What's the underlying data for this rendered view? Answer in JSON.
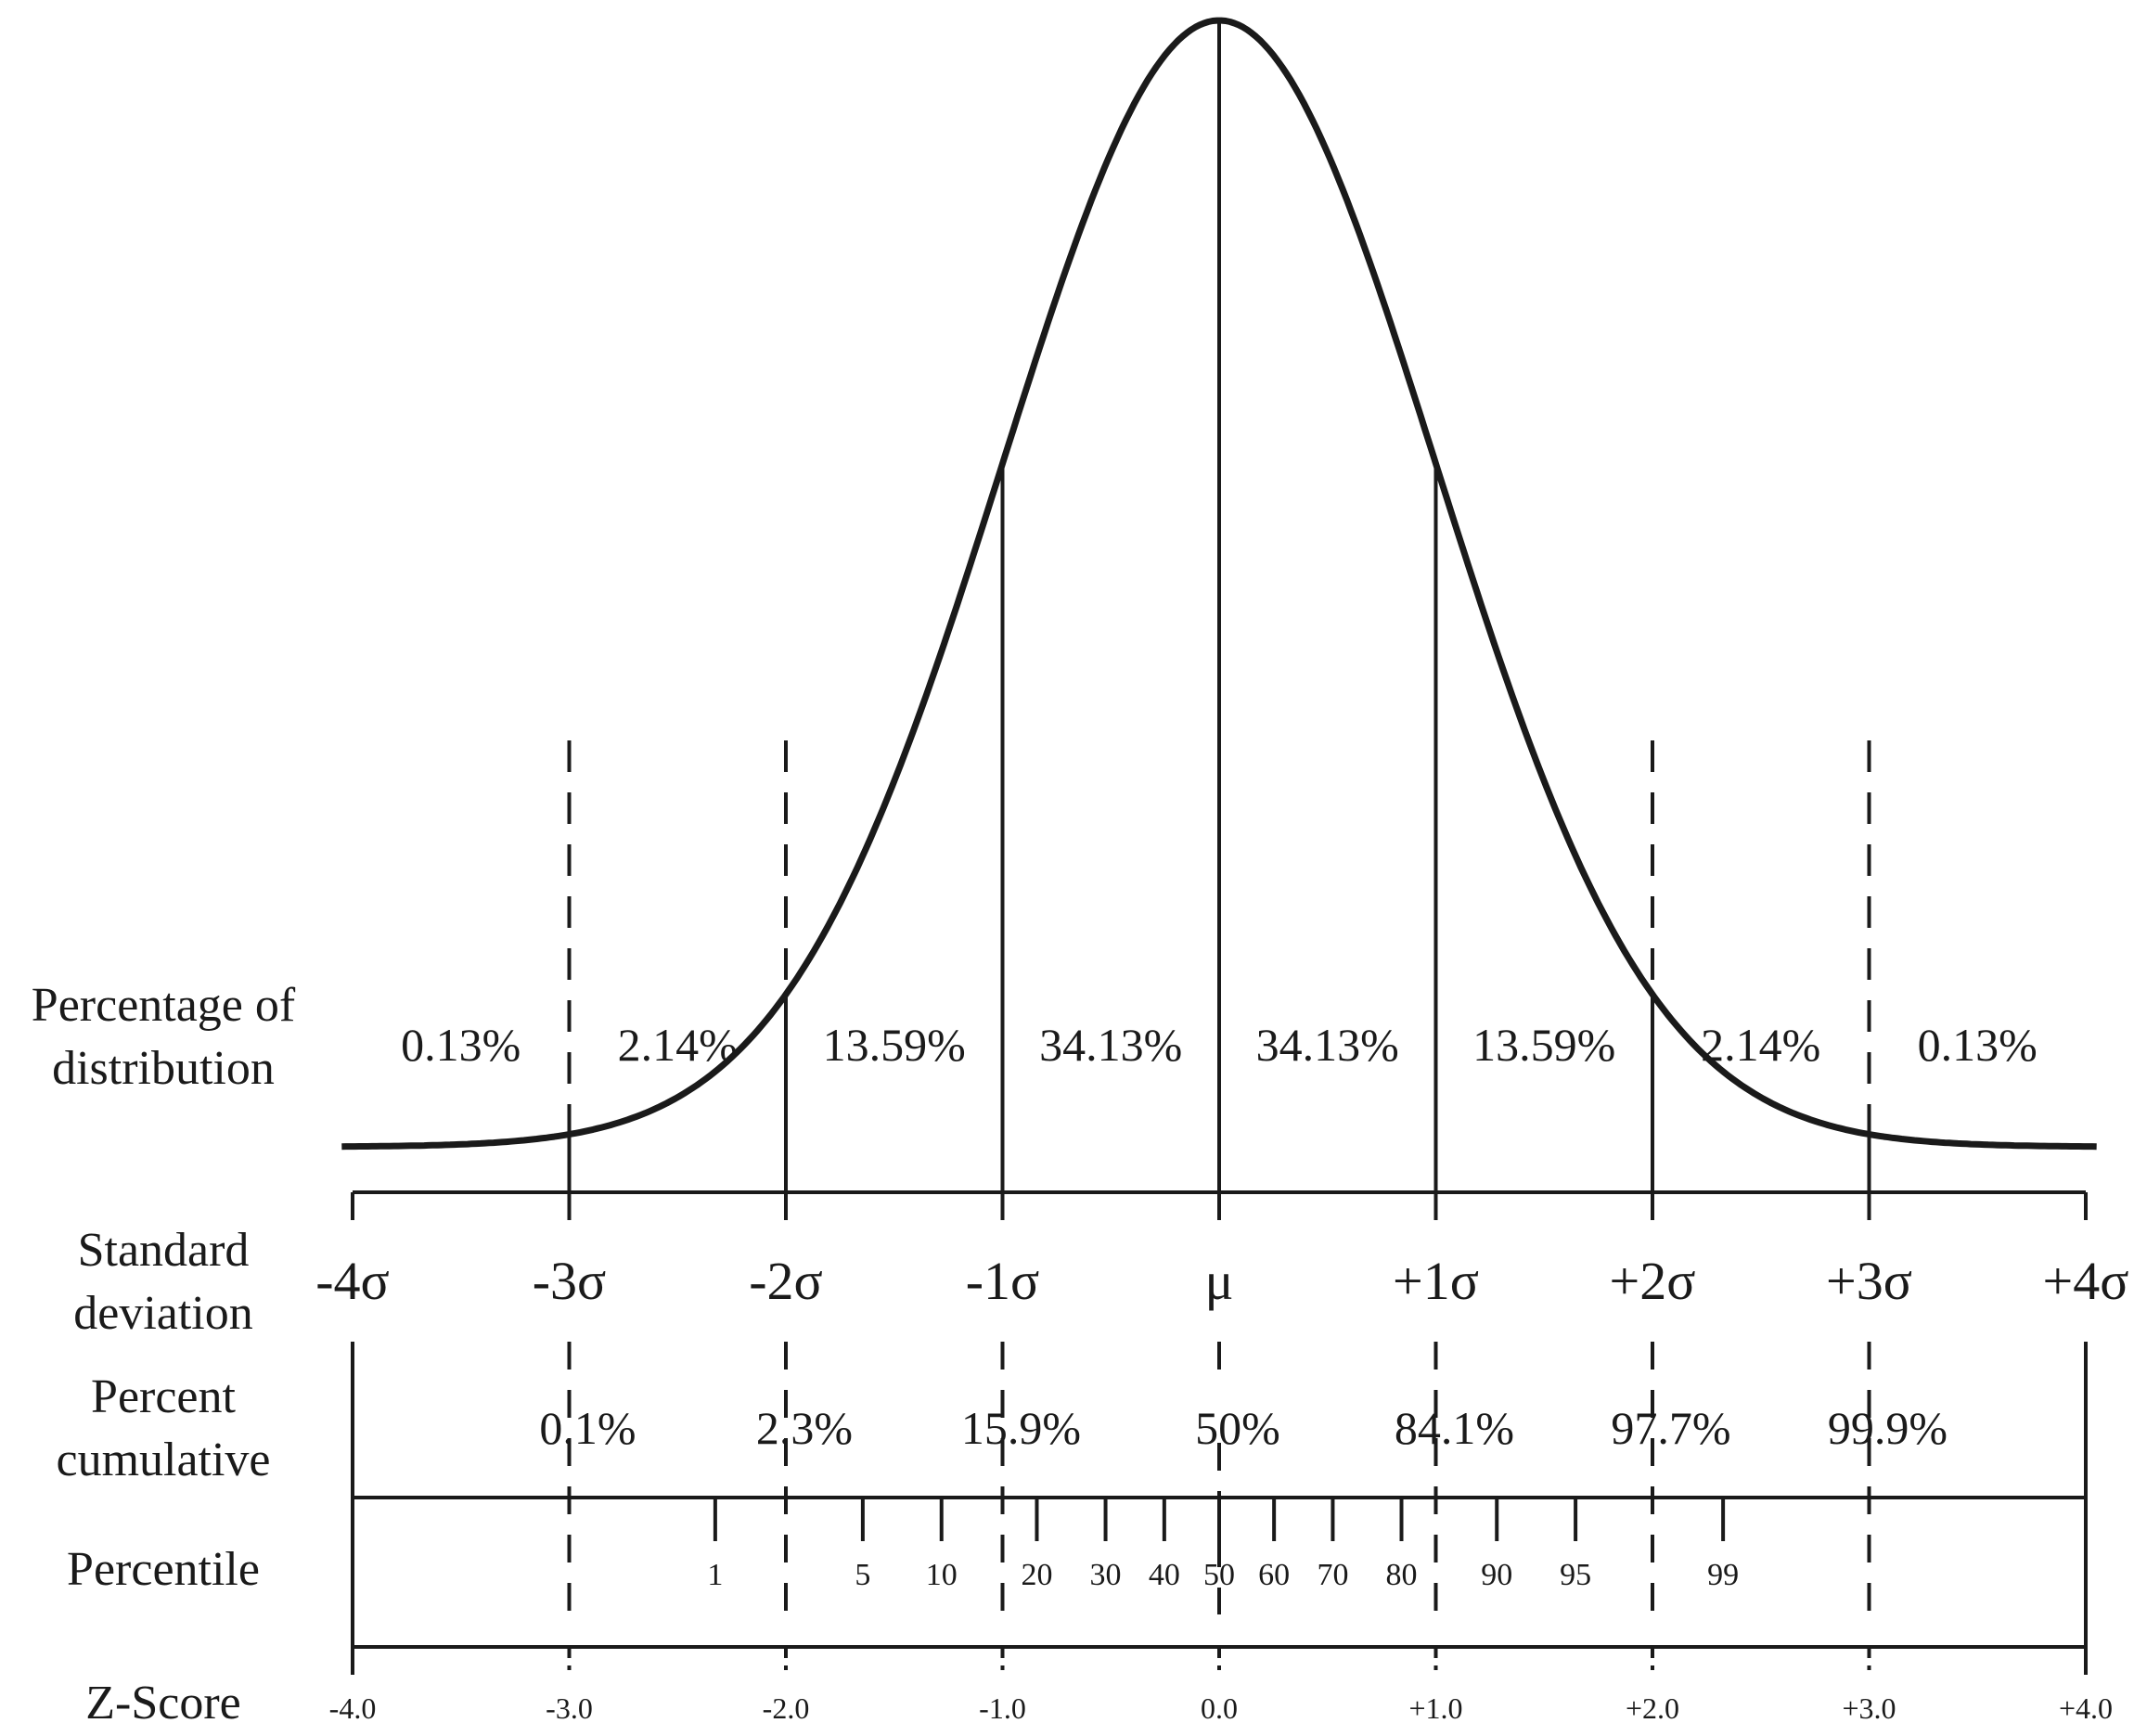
{
  "row_labels": {
    "percentage_line1": "Percentage of",
    "percentage_line2": "distribution",
    "sd_line1": "Standard",
    "sd_line2": "deviation",
    "cumulative_line1": "Percent",
    "cumulative_line2": "cumulative",
    "percentile": "Percentile",
    "zscore": "Z-Score"
  },
  "distribution_percentages": [
    "0.13%",
    "2.14%",
    "13.59%",
    "34.13%",
    "34.13%",
    "13.59%",
    "2.14%",
    "0.13%"
  ],
  "sd_labels": [
    "-4σ",
    "-3σ",
    "-2σ",
    "-1σ",
    "μ",
    "+1σ",
    "+2σ",
    "+3σ",
    "+4σ"
  ],
  "cumulative": [
    {
      "z": -3,
      "label": "0.1%"
    },
    {
      "z": -2,
      "label": "2.3%"
    },
    {
      "z": -1,
      "label": "15.9%"
    },
    {
      "z": 0,
      "label": "50%"
    },
    {
      "z": 1,
      "label": "84.1%"
    },
    {
      "z": 2,
      "label": "97.7%"
    },
    {
      "z": 3,
      "label": "99.9%"
    }
  ],
  "percentiles": [
    {
      "p": 1,
      "z": -2.326
    },
    {
      "p": 5,
      "z": -1.645
    },
    {
      "p": 10,
      "z": -1.2816
    },
    {
      "p": 20,
      "z": -0.8416
    },
    {
      "p": 30,
      "z": -0.5244
    },
    {
      "p": 40,
      "z": -0.2533
    },
    {
      "p": 50,
      "z": 0
    },
    {
      "p": 60,
      "z": 0.2533
    },
    {
      "p": 70,
      "z": 0.5244
    },
    {
      "p": 80,
      "z": 0.8416
    },
    {
      "p": 90,
      "z": 1.2816
    },
    {
      "p": 95,
      "z": 1.645
    },
    {
      "p": 99,
      "z": 2.326
    }
  ],
  "zscores": [
    "-4.0",
    "-3.0",
    "-2.0",
    "-1.0",
    "0.0",
    "+1.0",
    "+2.0",
    "+3.0",
    "+4.0"
  ]
}
